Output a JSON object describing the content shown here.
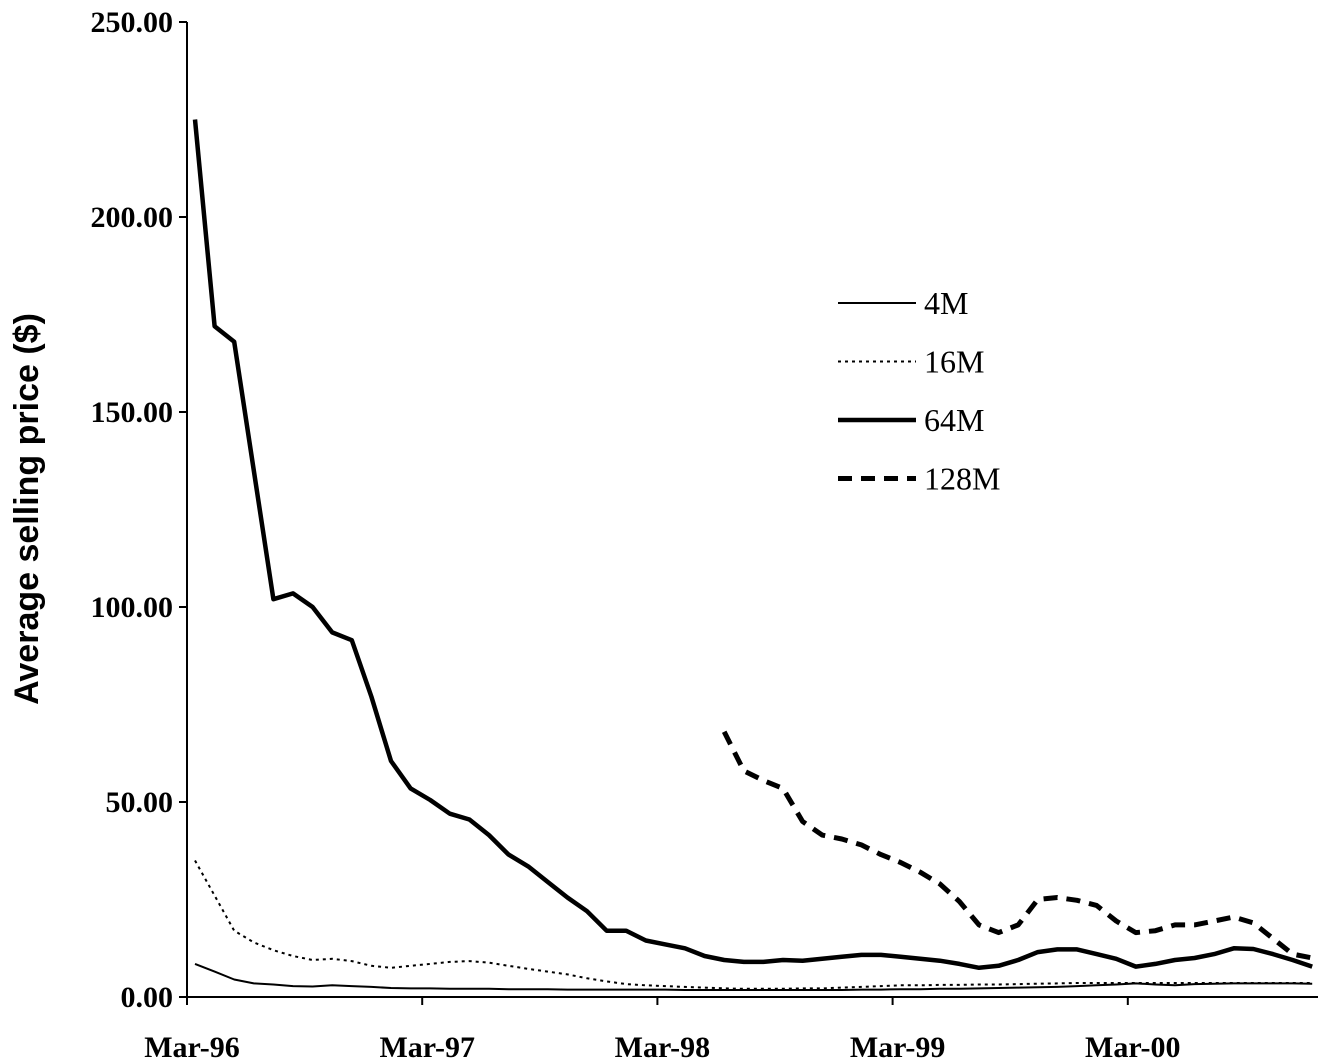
{
  "chart_data": {
    "type": "line",
    "ylabel": "Average selling price ($)",
    "xlabel": "",
    "ylim": [
      0,
      250
    ],
    "yticks": [
      "0.00",
      "50.00",
      "100.00",
      "150.00",
      "200.00",
      "250.00"
    ],
    "xticks": [
      "Mar-96",
      "Mar-97",
      "Mar-98",
      "Mar-99",
      "Mar-00"
    ],
    "x_start": "Mar-96",
    "x_end": "Dec-00",
    "grid": false,
    "legend_position": "upper-right",
    "series": [
      {
        "name": "4M",
        "style": "thin-solid",
        "start": "Mar-96",
        "values": [
          8.5,
          6.5,
          4.5,
          3.5,
          3.2,
          2.8,
          2.7,
          3.0,
          2.8,
          2.6,
          2.3,
          2.2,
          2.2,
          2.1,
          2.1,
          2.1,
          2.0,
          2.0,
          2.0,
          1.9,
          1.9,
          1.9,
          1.9,
          1.9,
          1.9,
          1.8,
          1.8,
          1.8,
          1.8,
          1.8,
          1.8,
          1.8,
          1.8,
          1.8,
          1.9,
          1.9,
          2.0,
          2.0,
          2.1,
          2.1,
          2.2,
          2.3,
          2.4,
          2.5,
          2.6,
          2.8,
          3.0,
          3.2,
          3.5,
          3.2,
          3.0,
          3.3,
          3.4,
          3.5,
          3.5,
          3.5,
          3.5,
          3.4
        ]
      },
      {
        "name": "16M",
        "style": "dotted",
        "start": "Mar-96",
        "values": [
          35.0,
          26.0,
          17.0,
          14.0,
          12.0,
          10.5,
          9.5,
          9.8,
          9.2,
          8.0,
          7.5,
          8.0,
          8.5,
          9.0,
          9.2,
          8.8,
          8.0,
          7.2,
          6.5,
          5.8,
          4.8,
          4.0,
          3.3,
          3.0,
          2.8,
          2.6,
          2.4,
          2.2,
          2.1,
          2.1,
          2.1,
          2.2,
          2.2,
          2.4,
          2.6,
          2.8,
          3.0,
          3.0,
          3.1,
          3.1,
          3.2,
          3.2,
          3.3,
          3.4,
          3.5,
          3.6,
          3.6,
          3.6,
          3.6,
          3.6,
          3.6,
          3.6,
          3.6,
          3.6,
          3.6,
          3.6,
          3.6,
          3.6
        ]
      },
      {
        "name": "64M",
        "style": "thick-solid",
        "start": "Mar-96",
        "values": [
          225.0,
          172.0,
          168.0,
          135.0,
          102.0,
          103.5,
          100.0,
          93.5,
          91.5,
          77.0,
          60.5,
          53.5,
          50.5,
          47.0,
          45.5,
          41.5,
          36.5,
          33.5,
          29.5,
          25.5,
          22.0,
          17.0,
          17.0,
          14.5,
          13.5,
          12.5,
          10.5,
          9.5,
          9.0,
          9.0,
          9.5,
          9.3,
          9.8,
          10.3,
          10.8,
          10.8,
          10.3,
          9.8,
          9.3,
          8.5,
          7.5,
          8.0,
          9.5,
          11.5,
          12.2,
          12.2,
          11.0,
          9.8,
          7.8,
          8.5,
          9.5,
          10.0,
          11.0,
          12.5,
          12.3,
          11.0,
          9.5,
          7.8
        ]
      },
      {
        "name": "128M",
        "style": "dashed",
        "start": "Jun-98",
        "values": [
          68.0,
          58.0,
          55.5,
          53.5,
          45.0,
          41.5,
          40.5,
          39.0,
          36.5,
          34.5,
          32.0,
          29.0,
          24.5,
          18.5,
          16.5,
          18.5,
          25.0,
          25.5,
          24.8,
          23.5,
          19.5,
          16.5,
          17.0,
          18.5,
          18.5,
          19.5,
          20.5,
          19.0,
          15.0,
          11.0,
          10.0
        ]
      }
    ]
  }
}
